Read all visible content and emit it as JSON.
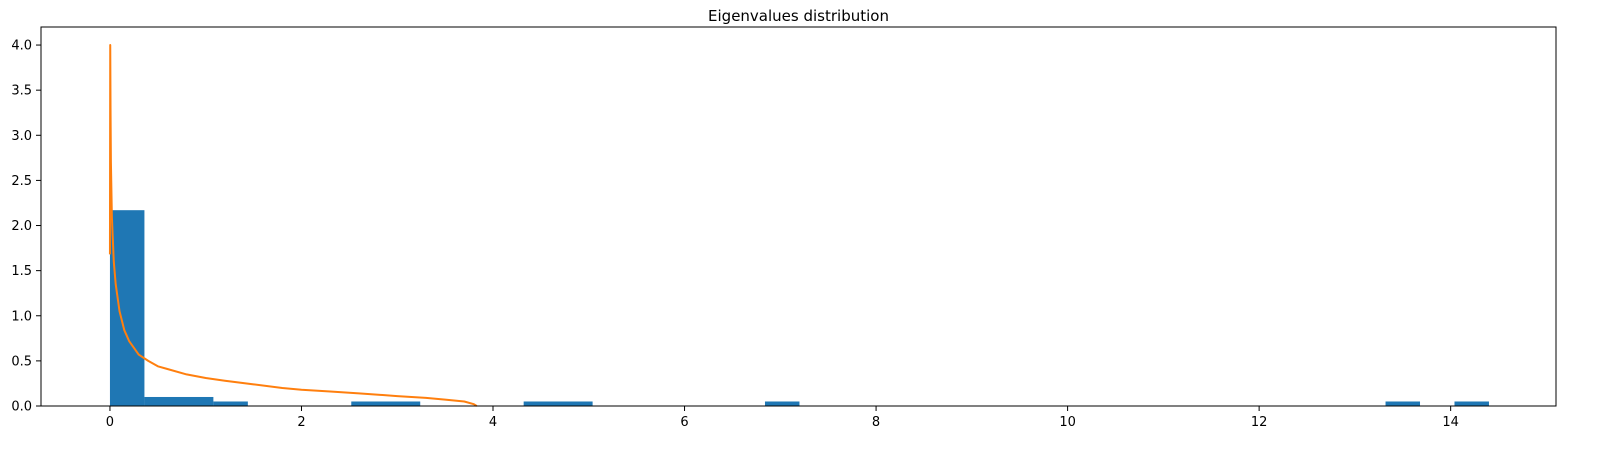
{
  "chart_data": {
    "type": "histogram",
    "title": "Eigenvalues distribution",
    "xlabel": "",
    "ylabel": "",
    "xlim": [
      -0.72,
      15.1
    ],
    "ylim": [
      0,
      4.2
    ],
    "xticks": [
      0,
      2,
      4,
      6,
      8,
      10,
      12,
      14
    ],
    "yticks": [
      0.0,
      0.5,
      1.0,
      1.5,
      2.0,
      2.5,
      3.0,
      3.5,
      4.0
    ],
    "grid": false,
    "legend": null,
    "colors": {
      "bars": "#1f77b4",
      "curve": "#ff7f0e"
    },
    "bars": [
      {
        "x0": 0.0,
        "x1": 0.36,
        "height": 2.17
      },
      {
        "x0": 0.36,
        "x1": 1.08,
        "height": 0.1
      },
      {
        "x0": 1.08,
        "x1": 1.44,
        "height": 0.05
      },
      {
        "x0": 2.52,
        "x1": 3.24,
        "height": 0.05
      },
      {
        "x0": 4.32,
        "x1": 5.04,
        "height": 0.05
      },
      {
        "x0": 6.84,
        "x1": 7.2,
        "height": 0.05
      },
      {
        "x0": 13.32,
        "x1": 13.68,
        "height": 0.05
      },
      {
        "x0": 14.04,
        "x1": 14.4,
        "height": 0.05
      }
    ],
    "series": [
      {
        "type": "line",
        "x": [
          0.0,
          0.003,
          0.006,
          0.01,
          0.02,
          0.04,
          0.06,
          0.1,
          0.15,
          0.2,
          0.3,
          0.4,
          0.5,
          0.6,
          0.8,
          1.0,
          1.2,
          1.5,
          1.8,
          2.0,
          2.3,
          2.6,
          3.0,
          3.3,
          3.5,
          3.7,
          3.8,
          3.83
        ],
        "y": [
          1.68,
          4.0,
          3.3,
          2.7,
          2.1,
          1.6,
          1.35,
          1.05,
          0.84,
          0.72,
          0.57,
          0.5,
          0.44,
          0.41,
          0.35,
          0.31,
          0.28,
          0.24,
          0.2,
          0.18,
          0.16,
          0.14,
          0.11,
          0.09,
          0.07,
          0.05,
          0.02,
          0.0
        ]
      }
    ]
  }
}
